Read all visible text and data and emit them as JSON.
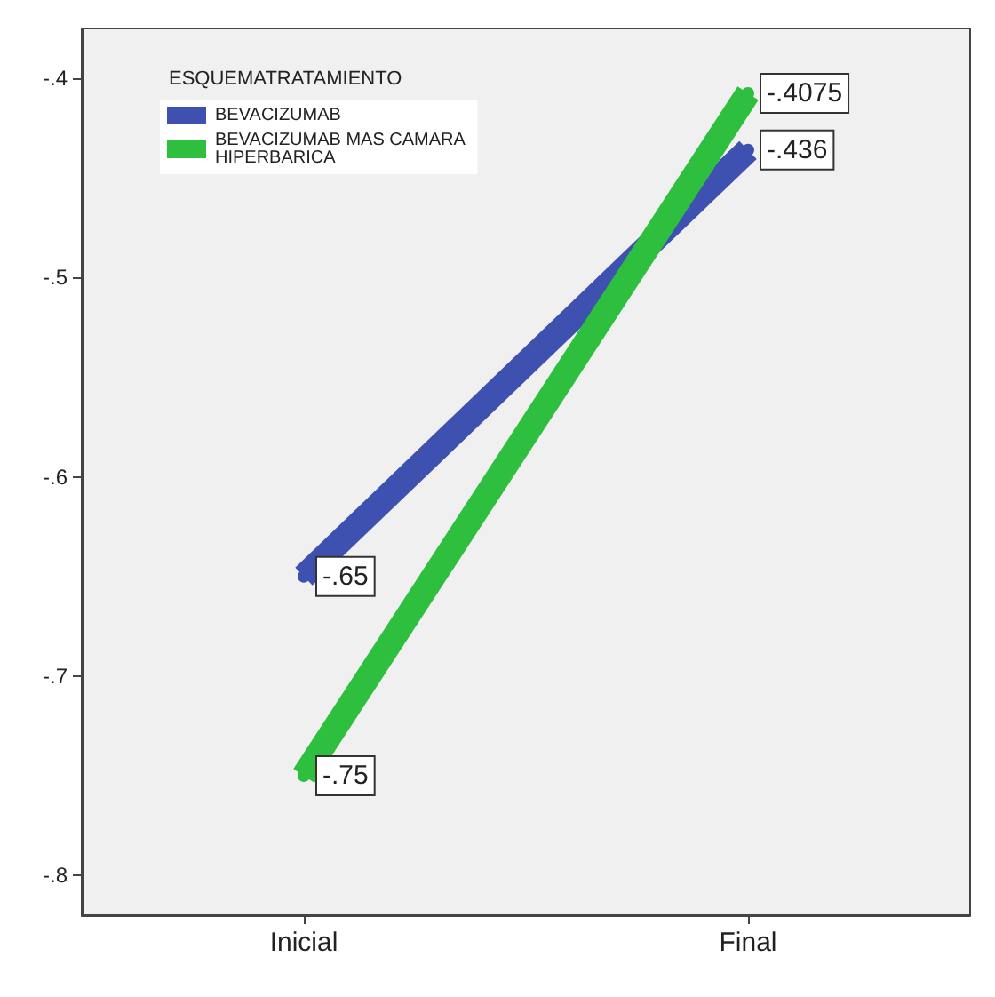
{
  "chart_data": {
    "type": "line",
    "categories": [
      "Inicial",
      "Final"
    ],
    "series": [
      {
        "name": "BEVACIZUMAB",
        "color": "#3f51b0",
        "values": [
          -0.65,
          -0.436
        ],
        "value_labels": [
          "-.65",
          "-.436"
        ]
      },
      {
        "name": "BEVACIZUMAB MAS CAMARA HIPERBARICA",
        "color": "#2fbf3f",
        "values": [
          -0.75,
          -0.4075
        ],
        "value_labels": [
          "-.75",
          "-.4075"
        ]
      }
    ],
    "legend_title": "ESQUEMATRATAMIENTO",
    "legend": "top left",
    "marker": "circle",
    "line_style": "solid",
    "grid": false,
    "ylim": [
      -0.82,
      -0.375
    ],
    "yticks": [
      {
        "value": -0.8,
        "label": "-.8"
      },
      {
        "value": -0.7,
        "label": "-.7"
      },
      {
        "value": -0.6,
        "label": "-.6"
      },
      {
        "value": -0.5,
        "label": "-.5"
      },
      {
        "value": -0.4,
        "label": "-.4"
      }
    ]
  }
}
